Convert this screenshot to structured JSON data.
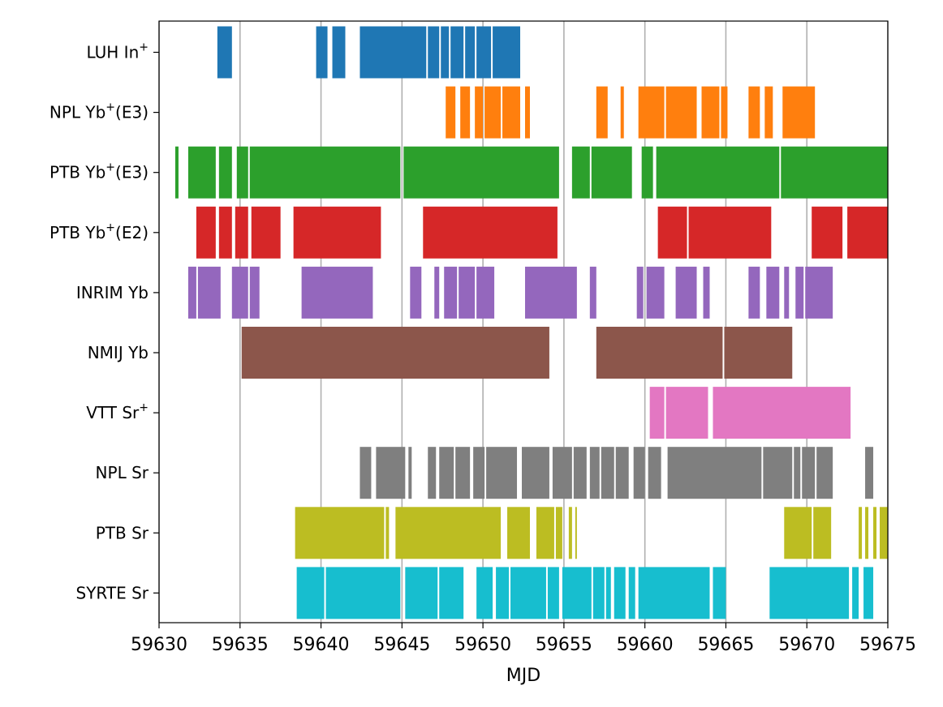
{
  "chart_data": {
    "type": "timeline",
    "xlabel": "MJD",
    "ylabel": "",
    "title": "",
    "xlim": [
      59630,
      59675
    ],
    "xticks": [
      59630,
      59635,
      59640,
      59645,
      59650,
      59655,
      59660,
      59665,
      59670,
      59675
    ],
    "grid": "vertical",
    "series": [
      {
        "name": "LUH In+",
        "label_main": "LUH In",
        "label_sup": "+",
        "label_rest": "",
        "color": "#1f77b4",
        "segments": [
          [
            59633.6,
            59634.5
          ],
          [
            59639.7,
            59640.4
          ],
          [
            59640.7,
            59641.5
          ],
          [
            59642.4,
            59646.5
          ],
          [
            59646.6,
            59647.3
          ],
          [
            59647.4,
            59647.9
          ],
          [
            59648.0,
            59648.8
          ],
          [
            59648.9,
            59649.5
          ],
          [
            59649.6,
            59650.5
          ],
          [
            59650.6,
            59652.3
          ]
        ]
      },
      {
        "name": "NPL Yb+(E3)",
        "label_main": "NPL Yb",
        "label_sup": "+",
        "label_rest": "(E3)",
        "color": "#ff7f0e",
        "segments": [
          [
            59647.7,
            59648.3
          ],
          [
            59648.6,
            59649.2
          ],
          [
            59649.5,
            59650.0
          ],
          [
            59650.1,
            59651.1
          ],
          [
            59651.2,
            59652.3
          ],
          [
            59652.6,
            59652.9
          ],
          [
            59657.0,
            59657.7
          ],
          [
            59658.5,
            59658.7
          ],
          [
            59659.6,
            59661.2
          ],
          [
            59661.3,
            59663.2
          ],
          [
            59663.5,
            59664.6
          ],
          [
            59664.7,
            59665.1
          ],
          [
            59666.4,
            59667.1
          ],
          [
            59667.4,
            59667.9
          ],
          [
            59668.5,
            59670.5
          ]
        ]
      },
      {
        "name": "PTB Yb+(E3)",
        "label_main": "PTB Yb",
        "label_sup": "+",
        "label_rest": "(E3)",
        "color": "#2ca02c",
        "segments": [
          [
            59631.0,
            59631.2
          ],
          [
            59631.8,
            59633.5
          ],
          [
            59633.7,
            59634.5
          ],
          [
            59634.8,
            59635.5
          ],
          [
            59635.6,
            59644.9
          ],
          [
            59645.1,
            59654.7
          ],
          [
            59655.5,
            59656.6
          ],
          [
            59656.7,
            59659.2
          ],
          [
            59659.8,
            59660.5
          ],
          [
            59660.7,
            59668.3
          ],
          [
            59668.4,
            59675.0
          ]
        ]
      },
      {
        "name": "PTB Yb+(E2)",
        "label_main": "PTB Yb",
        "label_sup": "+",
        "label_rest": "(E2)",
        "color": "#d62728",
        "segments": [
          [
            59632.3,
            59633.5
          ],
          [
            59633.7,
            59634.5
          ],
          [
            59634.7,
            59635.5
          ],
          [
            59635.7,
            59637.5
          ],
          [
            59638.3,
            59643.7
          ],
          [
            59646.3,
            59654.6
          ],
          [
            59660.8,
            59662.6
          ],
          [
            59662.7,
            59667.8
          ],
          [
            59670.3,
            59672.2
          ],
          [
            59672.5,
            59675.0
          ]
        ]
      },
      {
        "name": "INRIM Yb",
        "label_main": "INRIM Yb",
        "label_sup": "",
        "label_rest": "",
        "color": "#9467bd",
        "segments": [
          [
            59631.8,
            59632.3
          ],
          [
            59632.4,
            59633.8
          ],
          [
            59634.5,
            59635.5
          ],
          [
            59635.6,
            59636.2
          ],
          [
            59638.8,
            59643.2
          ],
          [
            59645.5,
            59646.2
          ],
          [
            59647.0,
            59647.3
          ],
          [
            59647.6,
            59648.4
          ],
          [
            59648.5,
            59649.5
          ],
          [
            59649.6,
            59650.7
          ],
          [
            59652.6,
            59655.8
          ],
          [
            59656.6,
            59657.0
          ],
          [
            59659.5,
            59659.9
          ],
          [
            59660.1,
            59661.2
          ],
          [
            59661.9,
            59663.2
          ],
          [
            59663.6,
            59664.0
          ],
          [
            59666.4,
            59667.1
          ],
          [
            59667.5,
            59668.3
          ],
          [
            59668.6,
            59668.9
          ],
          [
            59669.3,
            59669.8
          ],
          [
            59669.9,
            59671.6
          ]
        ]
      },
      {
        "name": "NMIJ Yb",
        "label_main": "NMIJ Yb",
        "label_sup": "",
        "label_rest": "",
        "color": "#8c564b",
        "segments": [
          [
            59635.1,
            59654.1
          ],
          [
            59657.0,
            59664.8
          ],
          [
            59664.9,
            59669.1
          ]
        ]
      },
      {
        "name": "VTT Sr+",
        "label_main": "VTT Sr",
        "label_sup": "+",
        "label_rest": "",
        "color": "#e377c2",
        "segments": [
          [
            59660.3,
            59661.2
          ],
          [
            59661.3,
            59663.9
          ],
          [
            59664.2,
            59672.7
          ]
        ]
      },
      {
        "name": "NPL Sr",
        "label_main": "NPL Sr",
        "label_sup": "",
        "label_rest": "",
        "color": "#7f7f7f",
        "segments": [
          [
            59642.4,
            59643.1
          ],
          [
            59643.4,
            59645.2
          ],
          [
            59645.4,
            59645.6
          ],
          [
            59646.6,
            59647.1
          ],
          [
            59647.3,
            59648.2
          ],
          [
            59648.3,
            59649.2
          ],
          [
            59649.4,
            59650.1
          ],
          [
            59650.2,
            59652.1
          ],
          [
            59652.4,
            59654.1
          ],
          [
            59654.3,
            59655.5
          ],
          [
            59655.6,
            59656.4
          ],
          [
            59656.6,
            59657.2
          ],
          [
            59657.3,
            59658.1
          ],
          [
            59658.2,
            59659.0
          ],
          [
            59659.3,
            59660.0
          ],
          [
            59660.2,
            59661.0
          ],
          [
            59661.4,
            59667.2
          ],
          [
            59667.3,
            59669.1
          ],
          [
            59669.2,
            59669.6
          ],
          [
            59669.7,
            59670.5
          ],
          [
            59670.6,
            59671.6
          ],
          [
            59673.6,
            59674.1
          ]
        ]
      },
      {
        "name": "PTB Sr",
        "label_main": "PTB Sr",
        "label_sup": "",
        "label_rest": "",
        "color": "#bcbd22",
        "segments": [
          [
            59638.4,
            59643.9
          ],
          [
            59644.0,
            59644.2
          ],
          [
            59644.6,
            59651.1
          ],
          [
            59651.5,
            59652.9
          ],
          [
            59653.3,
            59654.4
          ],
          [
            59654.5,
            59654.9
          ],
          [
            59655.3,
            59655.5
          ],
          [
            59655.7,
            59655.8
          ],
          [
            59668.6,
            59670.3
          ],
          [
            59670.4,
            59671.5
          ],
          [
            59673.2,
            59673.4
          ],
          [
            59673.6,
            59673.8
          ],
          [
            59674.1,
            59674.3
          ],
          [
            59674.5,
            59675.0
          ]
        ]
      },
      {
        "name": "SYRTE Sr",
        "label_main": "SYRTE Sr",
        "label_sup": "",
        "label_rest": "",
        "color": "#17becf",
        "segments": [
          [
            59638.5,
            59640.2
          ],
          [
            59640.3,
            59644.9
          ],
          [
            59645.2,
            59647.2
          ],
          [
            59647.3,
            59648.8
          ],
          [
            59649.6,
            59650.6
          ],
          [
            59650.8,
            59651.6
          ],
          [
            59651.7,
            59653.9
          ],
          [
            59654.0,
            59654.7
          ],
          [
            59654.9,
            59656.7
          ],
          [
            59656.8,
            59657.5
          ],
          [
            59657.6,
            59657.9
          ],
          [
            59658.1,
            59658.8
          ],
          [
            59659.0,
            59659.4
          ],
          [
            59659.6,
            59664.0
          ],
          [
            59664.2,
            59665.0
          ],
          [
            59667.7,
            59672.6
          ],
          [
            59672.8,
            59673.2
          ],
          [
            59673.5,
            59674.1
          ]
        ]
      }
    ]
  }
}
